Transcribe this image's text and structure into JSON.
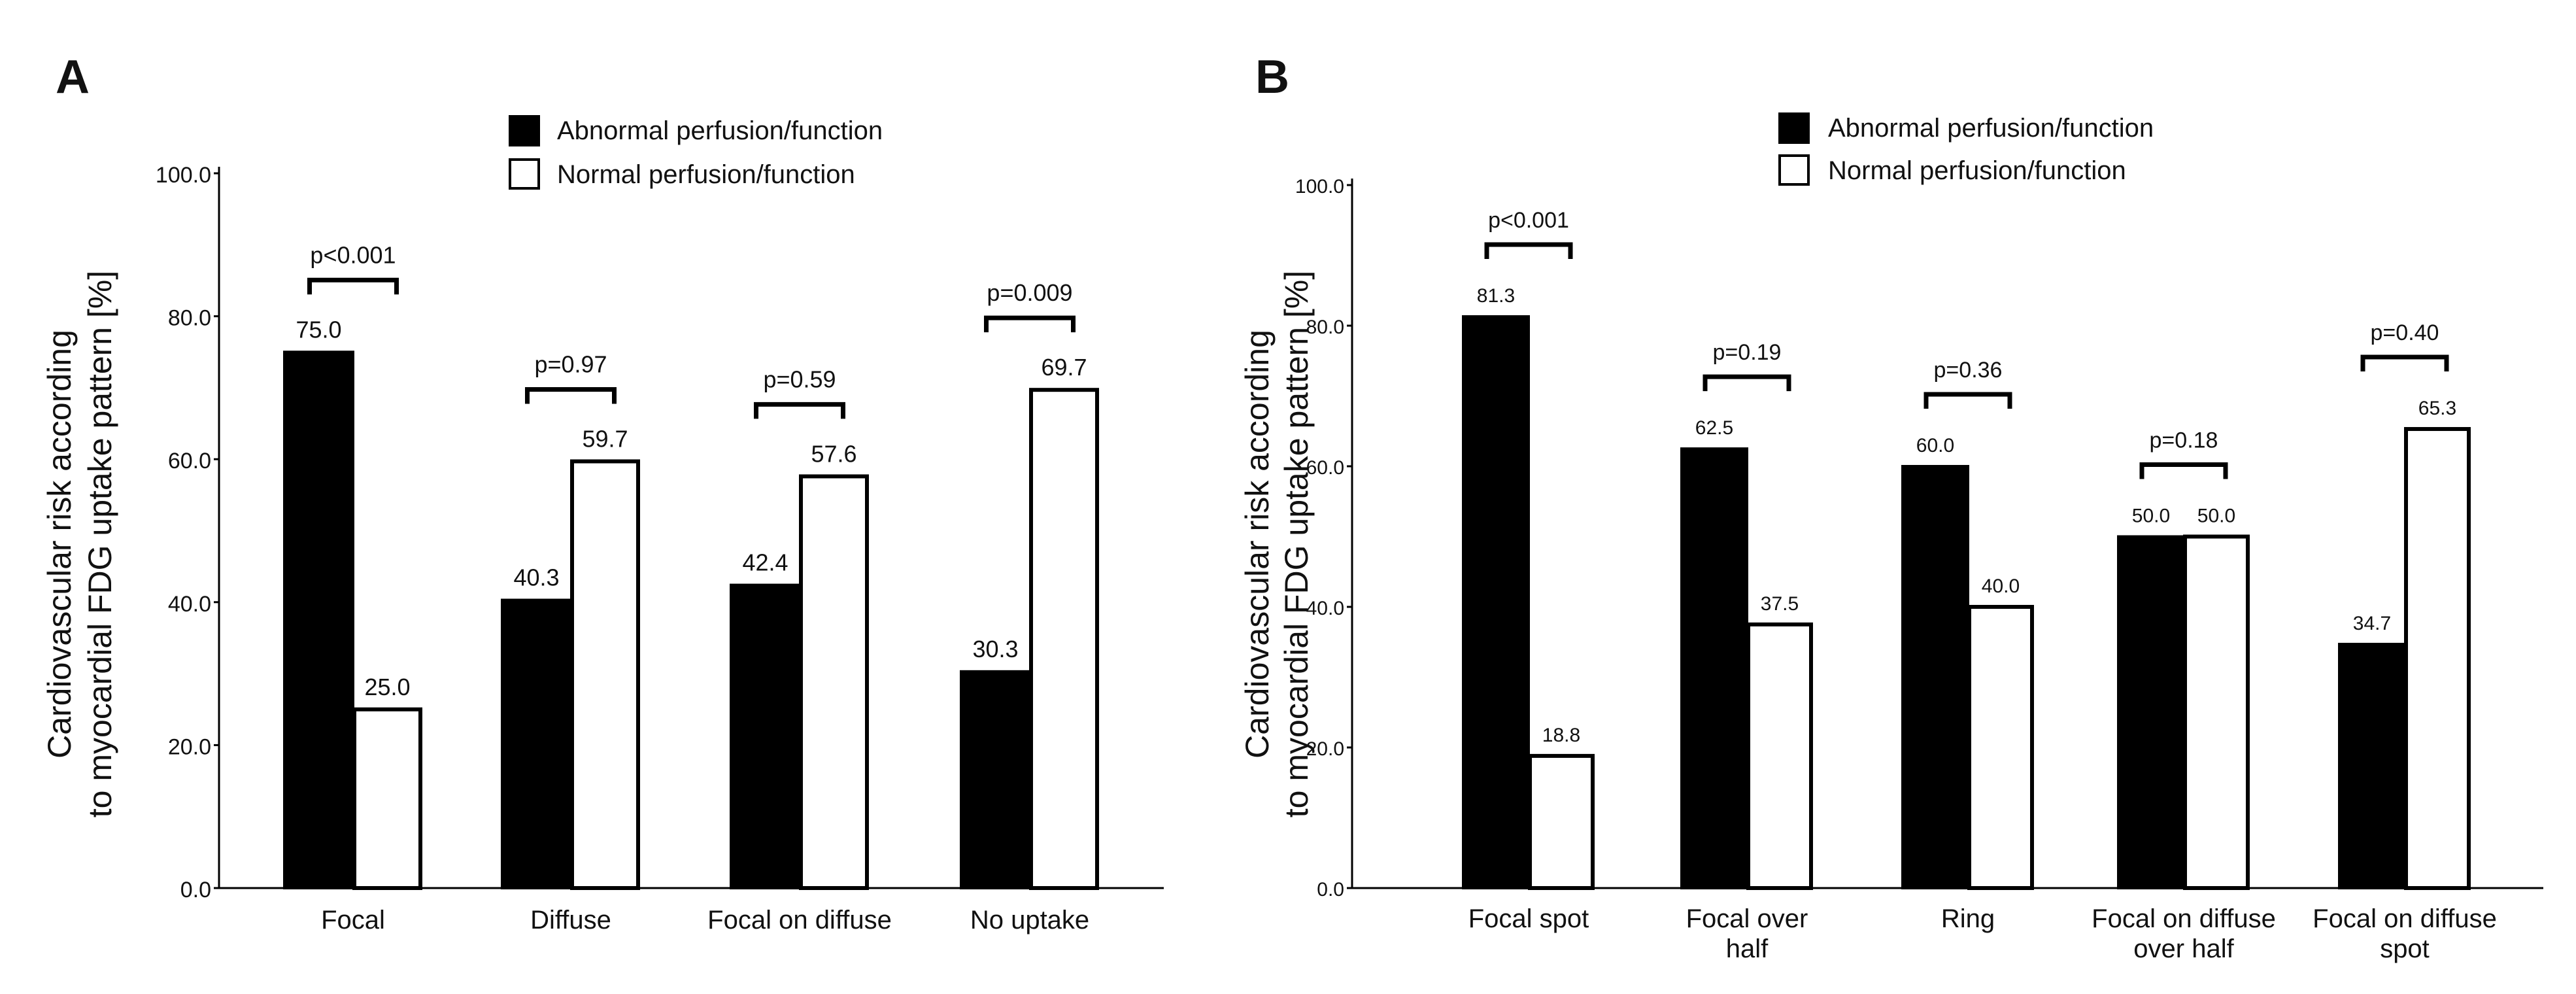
{
  "legend": {
    "abnormal": "Abnormal perfusion/function",
    "normal": "Normal perfusion/function"
  },
  "colors": {
    "abnormal": "#000000",
    "normal": "#ffffff",
    "stroke": "#000000"
  },
  "chart_data": [
    {
      "panel": "A",
      "type": "bar",
      "ylabel_lines": [
        "Cardiovascular risk according",
        "to myocardial FDG uptake pattern [%]"
      ],
      "ylim": [
        0,
        100
      ],
      "yticks": [
        "0.0",
        "20.0",
        "40.0",
        "60.0",
        "80.0",
        "100.0"
      ],
      "categories": [
        [
          "Focal"
        ],
        [
          "Diffuse"
        ],
        [
          "Focal on diffuse"
        ],
        [
          "No uptake"
        ]
      ],
      "series": [
        {
          "name": "Abnormal perfusion/function",
          "values": [
            75.0,
            40.3,
            42.4,
            30.3
          ],
          "labels": [
            "75.0",
            "40.3",
            "42.4",
            "30.3"
          ]
        },
        {
          "name": "Normal perfusion/function",
          "values": [
            25.0,
            59.7,
            57.6,
            69.7
          ],
          "labels": [
            "25.0",
            "59.7",
            "57.6",
            "69.7"
          ]
        }
      ],
      "annotations": [
        "p<0.001",
        "p=0.97",
        "p=0.59",
        "p=0.009"
      ],
      "legend_position": "top"
    },
    {
      "panel": "B",
      "type": "bar",
      "ylabel_lines": [
        "Cardiovascular risk according",
        "to myocardial FDG uptake pattern [%]"
      ],
      "ylim": [
        0,
        100
      ],
      "yticks": [
        "0.0",
        "20.0",
        "40.0",
        "60.0",
        "80.0",
        "100.0"
      ],
      "categories": [
        [
          "Focal spot"
        ],
        [
          "Focal over",
          "half"
        ],
        [
          "Ring"
        ],
        [
          "Focal on diffuse",
          "over half"
        ],
        [
          "Focal on diffuse",
          "spot"
        ]
      ],
      "series": [
        {
          "name": "Abnormal perfusion/function",
          "values": [
            81.3,
            62.5,
            60.0,
            50.0,
            34.7
          ],
          "labels": [
            "81.3",
            "62.5",
            "60.0",
            "50.0",
            "34.7"
          ]
        },
        {
          "name": "Normal perfusion/function",
          "values": [
            18.8,
            37.5,
            40.0,
            50.0,
            65.3
          ],
          "labels": [
            "18.8",
            "37.5",
            "40.0",
            "50.0",
            "65.3"
          ]
        }
      ],
      "annotations": [
        "p<0.001",
        "p=0.19",
        "p=0.36",
        "p=0.18",
        "p=0.40"
      ],
      "legend_position": "top"
    }
  ]
}
